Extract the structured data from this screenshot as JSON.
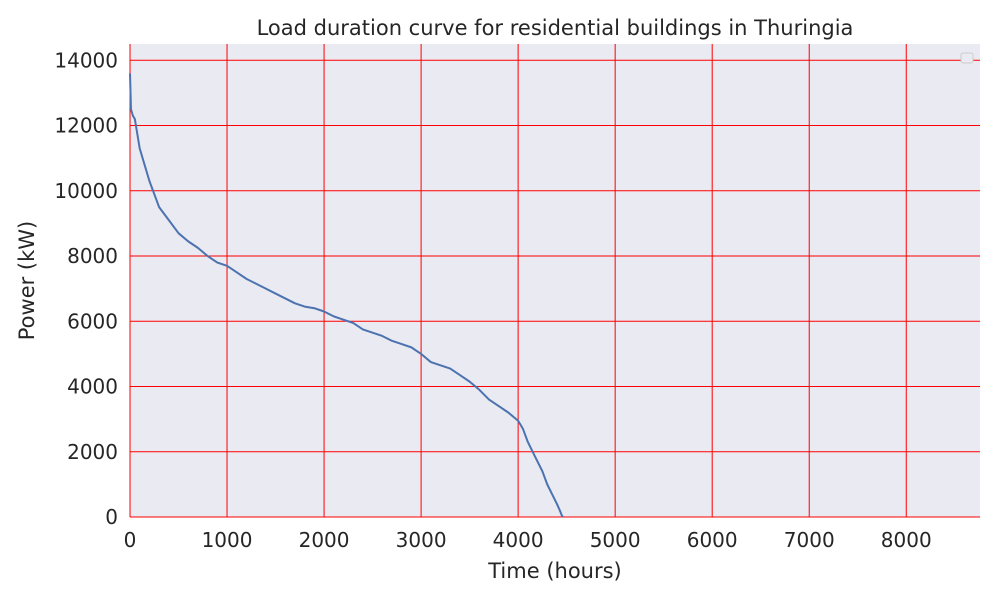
{
  "chart_data": {
    "type": "line",
    "title": "Load duration curve for residential buildings in Thuringia",
    "xlabel": "Time (hours)",
    "ylabel": "Power (kW)",
    "xlim": [
      0,
      8760
    ],
    "ylim": [
      0,
      14500
    ],
    "xticks": [
      0,
      1000,
      2000,
      3000,
      4000,
      5000,
      6000,
      7000,
      8000
    ],
    "yticks": [
      0,
      2000,
      4000,
      6000,
      8000,
      10000,
      12000,
      14000
    ],
    "grid": true,
    "legend": "top-right",
    "colors": {
      "background": "#eaeaf2",
      "grid": "#ff0000",
      "line": "#4c72b0"
    },
    "series": [
      {
        "x": [
          0,
          10,
          30,
          50,
          100,
          150,
          200,
          250,
          300,
          400,
          500,
          600,
          700,
          800,
          900,
          1000,
          1100,
          1200,
          1300,
          1400,
          1500,
          1600,
          1700,
          1800,
          1900,
          2000,
          2100,
          2200,
          2300,
          2400,
          2500,
          2600,
          2700,
          2800,
          2900,
          3000,
          3100,
          3200,
          3300,
          3400,
          3500,
          3600,
          3700,
          3800,
          3900,
          4000,
          4050,
          4100,
          4150,
          4200,
          4250,
          4300,
          4350,
          4400,
          4430,
          4450,
          4460
        ],
        "y": [
          13600,
          12500,
          12300,
          12200,
          11300,
          10800,
          10300,
          9900,
          9500,
          9100,
          8700,
          8450,
          8250,
          8000,
          7800,
          7700,
          7500,
          7300,
          7150,
          7000,
          6850,
          6700,
          6550,
          6450,
          6400,
          6300,
          6150,
          6050,
          5950,
          5750,
          5650,
          5550,
          5400,
          5300,
          5200,
          5000,
          4750,
          4650,
          4550,
          4350,
          4150,
          3900,
          3600,
          3400,
          3200,
          2950,
          2700,
          2300,
          2000,
          1700,
          1400,
          1000,
          700,
          400,
          200,
          50,
          0
        ]
      }
    ]
  }
}
